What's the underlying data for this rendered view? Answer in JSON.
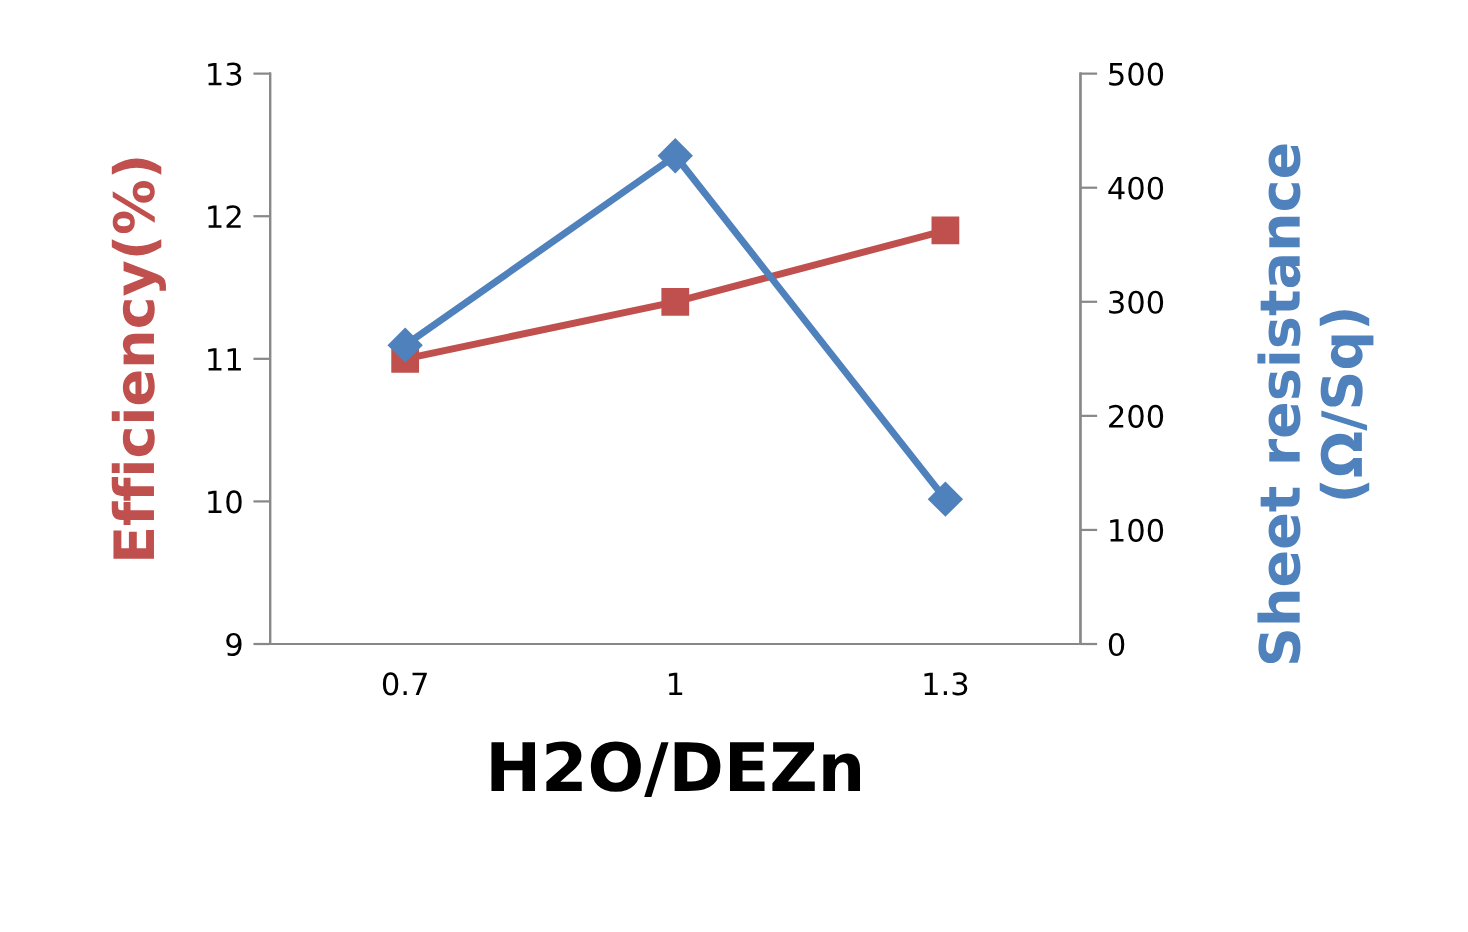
{
  "chart_data": {
    "type": "line",
    "categories": [
      "0.7",
      "1",
      "1.3"
    ],
    "xlabel": "H2O/DEZn",
    "ylabel": "Efficiency(%)",
    "y2label": "Sheet resistance\n(Ω/Sq)",
    "series": [
      {
        "color": "#c0504d",
        "marker": "square",
        "values": [
          11.0,
          11.4,
          11.9
        ]
      },
      {
        "color": "#4f81bd",
        "marker": "diamond",
        "axis": "y2",
        "values": [
          262,
          428,
          127
        ]
      }
    ],
    "ylim": [
      9,
      13
    ],
    "yticks": [
      9,
      10,
      11,
      12,
      13
    ],
    "y2lim": [
      0,
      500
    ],
    "y2ticks": [
      0,
      100,
      200,
      300,
      400,
      500
    ],
    "grid": false,
    "legend": false
  }
}
